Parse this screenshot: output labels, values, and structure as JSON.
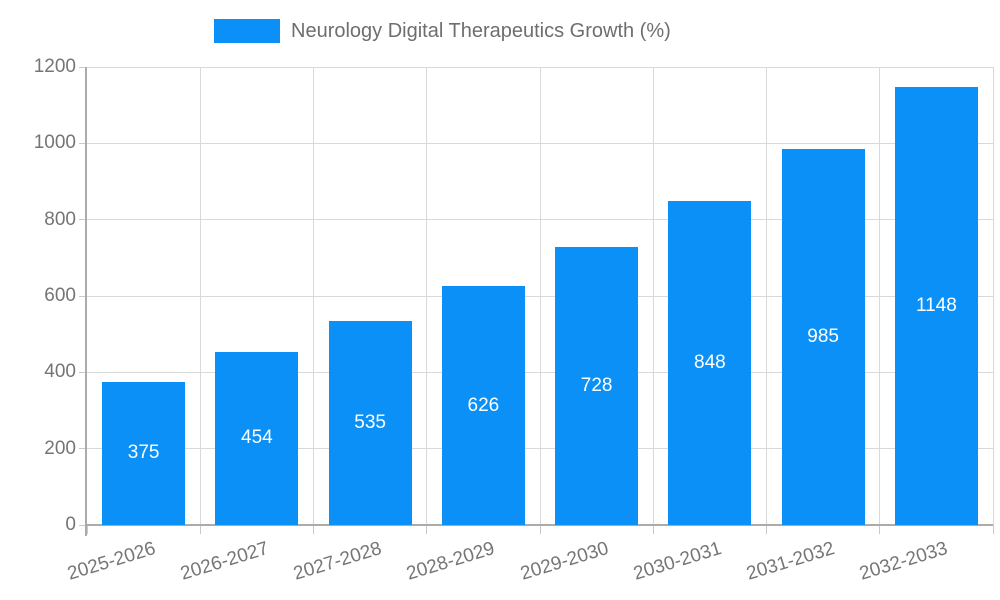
{
  "colors": {
    "bar": "#0b90f8",
    "grid": "#d9d9d9",
    "axis_line": "#ababab",
    "tick": "#c9c9c9",
    "axis_text": "#757575",
    "legend_text": "#6e6e6e",
    "value_text": "#ffffff",
    "background": "#ffffff"
  },
  "chart_data": {
    "type": "bar",
    "title": "Neurology Digital Therapeutics Growth (%)",
    "legend": {
      "label": "Neurology Digital Therapeutics Growth (%)",
      "position": "top"
    },
    "categories": [
      "2025-2026",
      "2026-2027",
      "2027-2028",
      "2028-2029",
      "2029-2030",
      "2030-2031",
      "2031-2032",
      "2032-2033"
    ],
    "series": [
      {
        "name": "Neurology Digital Therapeutics Growth (%)",
        "values": [
          375,
          454,
          535,
          626,
          728,
          848,
          985,
          1148
        ]
      }
    ],
    "values": [
      375,
      454,
      535,
      626,
      728,
      848,
      985,
      1148
    ],
    "value_labels": [
      "375",
      "454",
      "535",
      "626",
      "728",
      "848",
      "985",
      "1148"
    ],
    "xlabel": "",
    "ylabel": "",
    "ylim": [
      0,
      1200
    ],
    "yticks": [
      0,
      200,
      400,
      600,
      800,
      1000,
      1200
    ],
    "ytick_labels": [
      "0",
      "200",
      "400",
      "600",
      "800",
      "1000",
      "1200"
    ],
    "grid": true,
    "x_label_rotation_deg": -17
  }
}
